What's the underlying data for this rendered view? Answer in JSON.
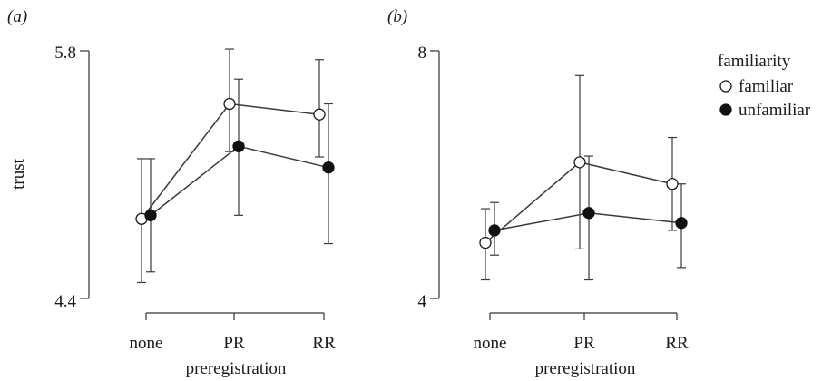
{
  "chart_data": [
    {
      "type": "line",
      "panel_label": "(a)",
      "categories": [
        "none",
        "PR",
        "RR"
      ],
      "xlabel": "preregistration",
      "ylabel": "trust",
      "ylim": [
        4.4,
        5.8
      ],
      "yticks": [
        4.4,
        5.8
      ],
      "ytick_labels": [
        "4.4",
        "5.8"
      ],
      "grid": false,
      "series": [
        {
          "name": "familiar",
          "marker": "open-circle",
          "values": [
            4.85,
            5.5,
            5.44
          ],
          "err_low": [
            4.49,
            5.23,
            5.2
          ],
          "err_high": [
            5.19,
            5.81,
            5.75
          ]
        },
        {
          "name": "unfamiliar",
          "marker": "filled-circle",
          "values": [
            4.87,
            5.26,
            5.14
          ],
          "err_low": [
            4.55,
            4.87,
            4.71
          ],
          "err_high": [
            5.19,
            5.64,
            5.5
          ]
        }
      ]
    },
    {
      "type": "line",
      "panel_label": "(b)",
      "categories": [
        "none",
        "PR",
        "RR"
      ],
      "xlabel": "preregistration",
      "ylabel": "",
      "ylim": [
        4,
        8
      ],
      "yticks": [
        4,
        8
      ],
      "ytick_labels": [
        "4",
        "8"
      ],
      "grid": false,
      "series": [
        {
          "name": "familiar",
          "marker": "open-circle",
          "values": [
            4.9,
            6.2,
            5.85
          ],
          "err_low": [
            4.3,
            4.8,
            5.1
          ],
          "err_high": [
            5.45,
            7.6,
            6.6
          ]
        },
        {
          "name": "unfamiliar",
          "marker": "filled-circle",
          "values": [
            5.1,
            5.38,
            5.22
          ],
          "err_low": [
            4.7,
            4.3,
            4.5
          ],
          "err_high": [
            5.55,
            6.3,
            5.85
          ]
        }
      ]
    }
  ],
  "legend": {
    "title": "familiarity",
    "placement": "right",
    "items": [
      {
        "label": "familiar",
        "marker": "open-circle"
      },
      {
        "label": "unfamiliar",
        "marker": "filled-circle"
      }
    ]
  },
  "colors": {
    "ink": "#1a1a1a",
    "open_marker_fill": "#ffffff",
    "filled_marker_fill": "#111111"
  }
}
